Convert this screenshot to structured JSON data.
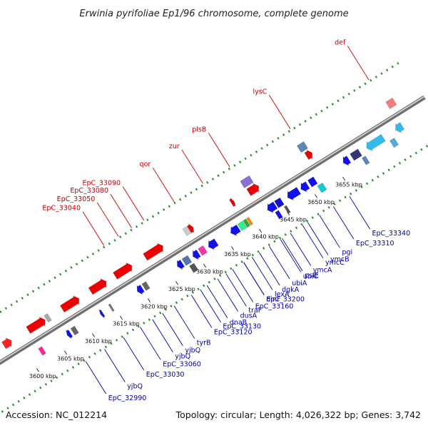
{
  "title": "Erwinia pyrifoliae Ep1/96 chromosome, complete genome",
  "footer": {
    "accession": "Accession: NC_012214",
    "summary": "Topology: circular; Length: 4,026,322 bp; Genes: 3,742"
  },
  "colors": {
    "forward_label": "#cc0000",
    "reverse_label": "#0000aa",
    "backbone": "#8c8c8c",
    "tick_ring": "#228b22",
    "forward_gene": "#ee0000",
    "reverse_gene": "#1010dd"
  },
  "scale": {
    "unit": "kbp",
    "ticks": [
      {
        "kbp": 3600,
        "label": "3600 kbp"
      },
      {
        "kbp": 3605,
        "label": "3605 kbp"
      },
      {
        "kbp": 3610,
        "label": "3610 kbp"
      },
      {
        "kbp": 3615,
        "label": "3615 kbp"
      },
      {
        "kbp": 3620,
        "label": "3620 kbp"
      },
      {
        "kbp": 3625,
        "label": "3625 kbp"
      },
      {
        "kbp": 3630,
        "label": "3630 kbp"
      },
      {
        "kbp": 3635,
        "label": "3635 kbp"
      },
      {
        "kbp": 3640,
        "label": "3640 kbp"
      },
      {
        "kbp": 3645,
        "label": "3645 kbp"
      },
      {
        "kbp": 3650,
        "label": "3650 kbp"
      },
      {
        "kbp": 3655,
        "label": "3655 kbp"
      }
    ]
  },
  "forward_features": [
    {
      "kbp": 3597.6,
      "len": 1.4,
      "color": "#ff2222",
      "arrow": true
    },
    {
      "kbp": 3602.0,
      "len": 3.0,
      "color": "#ee0000",
      "arrow": true
    },
    {
      "kbp": 3605.2,
      "len": 0.6,
      "color": "#aaaaaa",
      "arrow": false
    },
    {
      "kbp": 3608.1,
      "len": 3.0,
      "color": "#ee0000",
      "arrow": true
    },
    {
      "kbp": 3613.2,
      "len": 2.8,
      "color": "#ee0000",
      "arrow": true
    },
    {
      "kbp": 3617.6,
      "len": 3.0,
      "color": "#ee0000",
      "arrow": true
    },
    {
      "kbp": 3623.0,
      "len": 3.2,
      "color": "#ee0000",
      "arrow": true
    },
    {
      "kbp": 3630.1,
      "len": 0.7,
      "color": "#cccccc",
      "arrow": false
    },
    {
      "kbp": 3630.9,
      "len": 0.7,
      "color": "#ee0000",
      "arrow": true
    },
    {
      "kbp": 3638.5,
      "len": 0.5,
      "color": "#ee0000",
      "arrow": true
    },
    {
      "kbp": 3641.6,
      "len": 1.8,
      "color": "#ee0000",
      "arrow": true
    },
    {
      "kbp": 3641.4,
      "len": 1.6,
      "color": "#8870d8",
      "arrow": false,
      "ring": 2
    },
    {
      "kbp": 3652.0,
      "len": 1.0,
      "color": "#ee0000",
      "arrow": true
    },
    {
      "kbp": 3651.6,
      "len": 1.2,
      "color": "#5c86b4",
      "arrow": false,
      "ring": 2
    },
    {
      "kbp": 3666.6,
      "len": 1.2,
      "color": "#f08080",
      "arrow": false
    }
  ],
  "forward_labels": [
    {
      "text": "EpC_33040",
      "kbp": 3618.6
    },
    {
      "text": "EpC_33050",
      "kbp": 3621.2
    },
    {
      "text": "EpC_33080",
      "kbp": 3623.6
    },
    {
      "text": "EpC_33090",
      "kbp": 3625.8
    },
    {
      "text": "qor",
      "kbp": 3631.2
    },
    {
      "text": "zur",
      "kbp": 3636.4
    },
    {
      "text": "plsB",
      "kbp": 3641.2
    },
    {
      "text": "lysC",
      "kbp": 3652.1
    },
    {
      "text": "def",
      "kbp": 3666.2
    }
  ],
  "reverse_features": [
    {
      "kbp": 3601.8,
      "len": 0.6,
      "color": "#ff2299",
      "arrow": false
    },
    {
      "kbp": 3606.6,
      "len": 0.6,
      "color": "#1111ee",
      "arrow": true
    },
    {
      "kbp": 3607.6,
      "len": 0.7,
      "color": "#666666",
      "arrow": false
    },
    {
      "kbp": 3612.6,
      "len": 0.4,
      "color": "#1111ee",
      "arrow": true
    },
    {
      "kbp": 3614.4,
      "len": 0.3,
      "color": "#777777",
      "arrow": false
    },
    {
      "kbp": 3619.2,
      "len": 0.9,
      "color": "#1111ee",
      "arrow": true
    },
    {
      "kbp": 3620.4,
      "len": 0.7,
      "color": "#666666",
      "arrow": false
    },
    {
      "kbp": 3626.4,
      "len": 0.9,
      "color": "#1111ee",
      "arrow": true
    },
    {
      "kbp": 3627.6,
      "len": 1.0,
      "color": "#5577aa",
      "arrow": false
    },
    {
      "kbp": 3628.0,
      "len": 0.8,
      "color": "#555555",
      "arrow": false,
      "ring": -2
    },
    {
      "kbp": 3629.2,
      "len": 1.0,
      "color": "#1111ee",
      "arrow": true
    },
    {
      "kbp": 3630.5,
      "len": 0.9,
      "color": "#ff33aa",
      "arrow": false
    },
    {
      "kbp": 3632.0,
      "len": 1.4,
      "color": "#1111ee",
      "arrow": true
    },
    {
      "kbp": 3636.0,
      "len": 1.4,
      "color": "#1111ee",
      "arrow": true
    },
    {
      "kbp": 3637.6,
      "len": 0.9,
      "color": "#33ee99",
      "arrow": false
    },
    {
      "kbp": 3638.6,
      "len": 0.5,
      "color": "#33aa33",
      "arrow": false
    },
    {
      "kbp": 3639.2,
      "len": 0.4,
      "color": "#ff8800",
      "arrow": false
    },
    {
      "kbp": 3642.6,
      "len": 1.4,
      "color": "#1111ee",
      "arrow": true
    },
    {
      "kbp": 3644.2,
      "len": 1.0,
      "color": "#1111cc",
      "arrow": false
    },
    {
      "kbp": 3643.4,
      "len": 0.6,
      "color": "#1111ee",
      "arrow": false,
      "ring": -2
    },
    {
      "kbp": 3645.0,
      "len": 0.4,
      "color": "#555555",
      "arrow": false,
      "ring": -2
    },
    {
      "kbp": 3646.2,
      "len": 2.0,
      "color": "#1111ee",
      "arrow": true
    },
    {
      "kbp": 3648.6,
      "len": 1.2,
      "color": "#1111ee",
      "arrow": true
    },
    {
      "kbp": 3650.2,
      "len": 1.0,
      "color": "#1111ee",
      "arrow": false
    },
    {
      "kbp": 3651.0,
      "len": 0.9,
      "color": "#11cccc",
      "arrow": false,
      "ring": -2
    },
    {
      "kbp": 3656.2,
      "len": 1.0,
      "color": "#1111ee",
      "arrow": true
    },
    {
      "kbp": 3657.8,
      "len": 1.4,
      "color": "#333377",
      "arrow": false
    },
    {
      "kbp": 3659.0,
      "len": 0.6,
      "color": "#5588bb",
      "arrow": false,
      "ring": -2
    },
    {
      "kbp": 3660.4,
      "len": 3.0,
      "color": "#33bbee",
      "arrow": true
    },
    {
      "kbp": 3664.0,
      "len": 0.8,
      "color": "#55aadd",
      "arrow": false,
      "ring": -2
    },
    {
      "kbp": 3665.6,
      "len": 1.2,
      "color": "#33bbee",
      "arrow": true
    }
  ],
  "reverse_labels": [
    {
      "text": "EpC_32990",
      "kbp": 3606.9
    },
    {
      "text": "yjbQ",
      "kbp": 3610.3
    },
    {
      "text": "EpC_33030",
      "kbp": 3613.7
    },
    {
      "text": "EpC_33060",
      "kbp": 3616.7
    },
    {
      "text": "yjbQ",
      "kbp": 3618.9
    },
    {
      "text": "yjbQ",
      "kbp": 3620.7
    },
    {
      "text": "tyrB",
      "kbp": 3622.8
    },
    {
      "text": "EpC_33120",
      "kbp": 3625.9
    },
    {
      "text": "EpC_33130",
      "kbp": 3627.5
    },
    {
      "text": "dnaB",
      "kbp": 3628.7
    },
    {
      "text": "dusA",
      "kbp": 3630.6
    },
    {
      "text": "traF",
      "kbp": 3632.1
    },
    {
      "text": "EpC_33160",
      "kbp": 3633.3
    },
    {
      "text": "EpC_33200",
      "kbp": 3635.3
    },
    {
      "text": "dinF",
      "kbp": 3635.3
    },
    {
      "text": "lexA",
      "kbp": 3636.8
    },
    {
      "text": "dgkA",
      "kbp": 3638.1
    },
    {
      "text": "ubiA",
      "kbp": 3639.9
    },
    {
      "text": "ubiC",
      "kbp": 3641.9
    },
    {
      "text": "psiE",
      "kbp": 3642.2
    },
    {
      "text": "ymcA",
      "kbp": 3643.7
    },
    {
      "text": "ymcC",
      "kbp": 3645.9
    },
    {
      "text": "ymcB",
      "kbp": 3646.8
    },
    {
      "text": "pgi",
      "kbp": 3648.9
    },
    {
      "text": "EpC_33310",
      "kbp": 3651.4
    },
    {
      "text": "EpC_33340",
      "kbp": 3654.3
    }
  ]
}
